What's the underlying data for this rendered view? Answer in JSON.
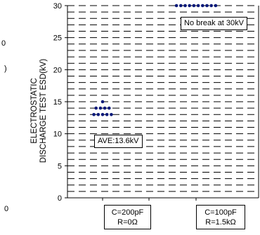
{
  "chart_data": {
    "type": "scatter",
    "ylabel_lines": [
      "ELECTROSTATIC",
      "DISCHARGE TEST ESD(kV)"
    ],
    "ylim": [
      0,
      30
    ],
    "yticks": [
      "0",
      "5",
      "10",
      "15",
      "20",
      "25",
      "30"
    ],
    "grid": "dashed horizontal, every 1 kV",
    "categories": [
      {
        "lines": [
          "C=200pF",
          "R=0Ω"
        ]
      },
      {
        "lines": [
          "C=100pF",
          "R=1.5kΩ"
        ]
      }
    ],
    "points": [
      {
        "category": 0,
        "y": 15,
        "count": 1
      },
      {
        "category": 0,
        "y": 14,
        "count": 4
      },
      {
        "category": 0,
        "y": 13,
        "count": 5
      },
      {
        "category": 1,
        "y": 30,
        "count": 10
      }
    ],
    "annotations": [
      {
        "text": "AVE:13.6kV",
        "category": 0,
        "y": 8.6
      },
      {
        "text": "No break at 30kV",
        "category": 1,
        "y": 27.3
      }
    ],
    "marker_color": "#0b1a7a"
  },
  "stray_labels": [
    "0",
    "0",
    ")"
  ]
}
